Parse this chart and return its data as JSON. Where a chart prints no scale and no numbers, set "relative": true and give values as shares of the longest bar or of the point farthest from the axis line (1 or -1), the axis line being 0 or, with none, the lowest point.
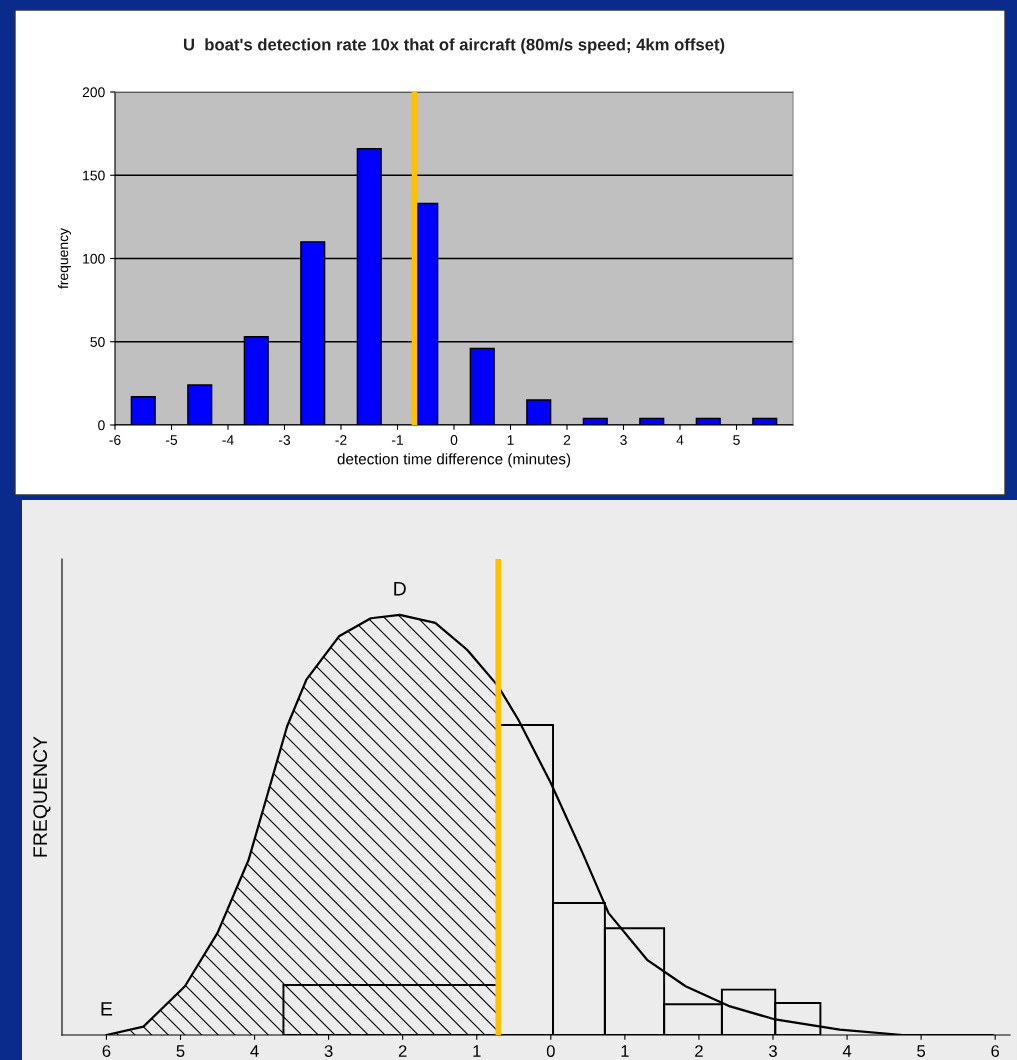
{
  "chart_data": [
    {
      "type": "bar",
      "title": "U  boat's detection rate 10x that of aircraft (80m/s speed; 4km offset)",
      "xlabel": "detection time difference (minutes)",
      "ylabel": "frequency",
      "x": [
        -5.5,
        -4.5,
        -3.5,
        -2.5,
        -1.5,
        -0.5,
        0.5,
        1.5,
        2.5,
        3.5,
        4.5,
        5.5
      ],
      "values": [
        17,
        24,
        53,
        110,
        166,
        133,
        46,
        15,
        4,
        4,
        4,
        4
      ],
      "color": "#0000ff",
      "xlim": [
        -6,
        6
      ],
      "xticks": [
        -6,
        -5,
        -4,
        -3,
        -2,
        -1,
        0,
        1,
        2,
        3,
        4,
        5
      ],
      "ylim": [
        0,
        200
      ],
      "yticks": [
        0,
        50,
        100,
        150,
        200
      ],
      "grid": "y",
      "ref_lines": [
        {
          "axis": "x",
          "value": -0.7,
          "color": "#ffc000"
        }
      ]
    },
    {
      "type": "line",
      "relative": true,
      "ylabel": "FREQUENCY",
      "xlim": [
        -6.6,
        6.2
      ],
      "xticks": [
        {
          "value": -6,
          "label": "6"
        },
        {
          "value": -5,
          "label": "5"
        },
        {
          "value": -4,
          "label": "4"
        },
        {
          "value": -3,
          "label": "3"
        },
        {
          "value": -2,
          "label": "2"
        },
        {
          "value": -1,
          "label": "1"
        },
        0,
        1,
        2,
        3,
        4,
        5,
        6
      ],
      "series": [
        {
          "type": "area",
          "color": "#000000",
          "x": [
            -6,
            -5.5,
            -4.94,
            -4.5,
            -4.08,
            -3.82,
            -3.56,
            -3.3,
            -2.86,
            -2.43,
            -2.04,
            -1.56,
            -1.13,
            -0.71
          ],
          "values": [
            0,
            0.02,
            0.116,
            0.243,
            0.417,
            0.576,
            0.735,
            0.846,
            0.949,
            0.992,
            1.0,
            0.981,
            0.917,
            0.83
          ]
        },
        {
          "type": "line",
          "color": "#000000",
          "x": [
            -0.71,
            -0.44,
            0,
            0.43,
            0.78,
            1.3,
            1.82,
            2.42,
            3.03,
            3.9,
            4.75,
            5.97
          ],
          "values": [
            0.83,
            0.751,
            0.6,
            0.433,
            0.29,
            0.179,
            0.116,
            0.068,
            0.037,
            0.013,
            0,
            0
          ]
        },
        {
          "type": "histogram",
          "color": "#000000",
          "bins": [
            -3.61,
            -0.71,
            0.03,
            0.73,
            1.53,
            2.31,
            3.03,
            3.64
          ],
          "values": [
            0.119,
            0.738,
            0.314,
            0.254,
            0.073,
            0.108,
            0.076
          ]
        }
      ],
      "annotations": [
        {
          "text": "D",
          "x": -2.04,
          "y": 1.0
        },
        {
          "text": "E",
          "x": -6,
          "y": 0
        }
      ],
      "ref_lines": [
        {
          "axis": "x",
          "value": -0.71,
          "color": "#ffc000"
        }
      ]
    }
  ]
}
